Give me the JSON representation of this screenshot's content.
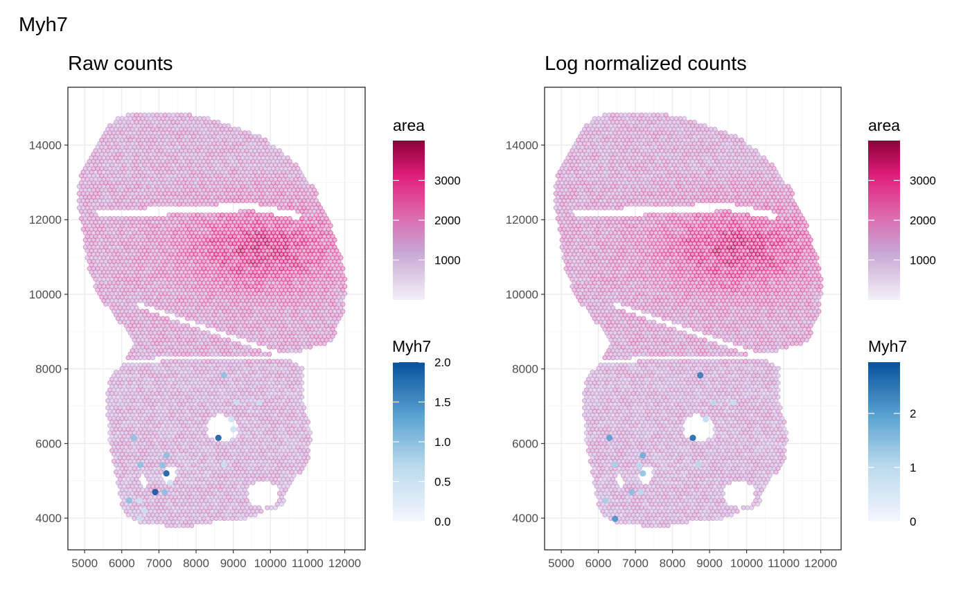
{
  "figure": {
    "title": "Myh7"
  },
  "colors": {
    "area_low": "#efe9f5",
    "area_mid1": "#c7a6d4",
    "area_mid2": "#df63a9",
    "area_high1": "#e01e7c",
    "area_high2": "#8c0038",
    "myh7_low": "#f5f6ff",
    "myh7_mid": "#9ac8e3",
    "myh7_high1": "#3b89bf",
    "myh7_high2": "#08519c",
    "grid": "#ebebeb",
    "frame": "#333333",
    "tick_text": "#4d4d4d"
  },
  "chart_data": [
    {
      "type": "scatter",
      "title": "Raw counts",
      "xlabel": "",
      "ylabel": "",
      "x_ticks": [
        5000,
        6000,
        7000,
        8000,
        9000,
        10000,
        11000,
        12000
      ],
      "y_ticks": [
        4000,
        6000,
        8000,
        10000,
        12000,
        14000
      ],
      "xlim": [
        4550,
        12550
      ],
      "ylim": [
        3150,
        15550
      ],
      "grid": true,
      "fill_scale": {
        "title": "area",
        "ticks": [
          1000,
          2000,
          3000
        ],
        "range": [
          0,
          4000
        ]
      },
      "color_scale": {
        "title": "Myh7",
        "ticks": [
          "0.0",
          "0.5",
          "1.0",
          "1.5",
          "2.0"
        ],
        "tick_values": [
          0,
          0.5,
          1,
          1.5,
          2
        ],
        "range": [
          0,
          2
        ]
      },
      "expressing_spots": [
        {
          "x": 8750,
          "y": 7830,
          "value": 1.0
        },
        {
          "x": 9100,
          "y": 7100,
          "value": 0.5
        },
        {
          "x": 9700,
          "y": 7100,
          "value": 0.5
        },
        {
          "x": 8950,
          "y": 6650,
          "value": 0.5
        },
        {
          "x": 6320,
          "y": 6150,
          "value": 1.0
        },
        {
          "x": 8600,
          "y": 6150,
          "value": 2.0
        },
        {
          "x": 9000,
          "y": 6380,
          "value": 0.5
        },
        {
          "x": 7200,
          "y": 5680,
          "value": 1.0
        },
        {
          "x": 6500,
          "y": 5430,
          "value": 1.0
        },
        {
          "x": 7100,
          "y": 5420,
          "value": 1.0
        },
        {
          "x": 8750,
          "y": 5430,
          "value": 0.5
        },
        {
          "x": 7200,
          "y": 5200,
          "value": 2.0
        },
        {
          "x": 7300,
          "y": 4950,
          "value": 0.5
        },
        {
          "x": 6900,
          "y": 4700,
          "value": 2.0
        },
        {
          "x": 7150,
          "y": 4700,
          "value": 1.0
        },
        {
          "x": 6200,
          "y": 4470,
          "value": 1.0
        },
        {
          "x": 6480,
          "y": 4470,
          "value": 0.5
        },
        {
          "x": 6600,
          "y": 4200,
          "value": 0.5
        },
        {
          "x": 6480,
          "y": 3980,
          "value": 0.5
        }
      ]
    },
    {
      "type": "scatter",
      "title": "Log normalized counts",
      "xlabel": "",
      "ylabel": "",
      "x_ticks": [
        5000,
        6000,
        7000,
        8000,
        9000,
        10000,
        11000,
        12000
      ],
      "y_ticks": [
        4000,
        6000,
        8000,
        10000,
        12000,
        14000
      ],
      "xlim": [
        4550,
        12550
      ],
      "ylim": [
        3150,
        15550
      ],
      "grid": true,
      "fill_scale": {
        "title": "area",
        "ticks": [
          1000,
          2000,
          3000
        ],
        "range": [
          0,
          4000
        ]
      },
      "color_scale": {
        "title": "Myh7",
        "ticks": [
          "0",
          "1",
          "2"
        ],
        "tick_values": [
          0,
          1,
          2
        ],
        "range": [
          0,
          2.95
        ]
      },
      "expressing_spots": [
        {
          "x": 8750,
          "y": 7830,
          "value": 2.5
        },
        {
          "x": 9100,
          "y": 7100,
          "value": 1.0
        },
        {
          "x": 9650,
          "y": 7100,
          "value": 0.8
        },
        {
          "x": 8900,
          "y": 6650,
          "value": 1.0
        },
        {
          "x": 6300,
          "y": 6150,
          "value": 2.0
        },
        {
          "x": 8550,
          "y": 6150,
          "value": 2.8
        },
        {
          "x": 7200,
          "y": 5680,
          "value": 1.8
        },
        {
          "x": 6450,
          "y": 5430,
          "value": 1.2
        },
        {
          "x": 7100,
          "y": 5420,
          "value": 1.0
        },
        {
          "x": 8700,
          "y": 5430,
          "value": 1.0
        },
        {
          "x": 7200,
          "y": 5200,
          "value": 1.5
        },
        {
          "x": 6900,
          "y": 4700,
          "value": 1.5
        },
        {
          "x": 7150,
          "y": 4700,
          "value": 1.0
        },
        {
          "x": 6200,
          "y": 4470,
          "value": 1.2
        },
        {
          "x": 6450,
          "y": 3980,
          "value": 2.2
        }
      ]
    }
  ]
}
